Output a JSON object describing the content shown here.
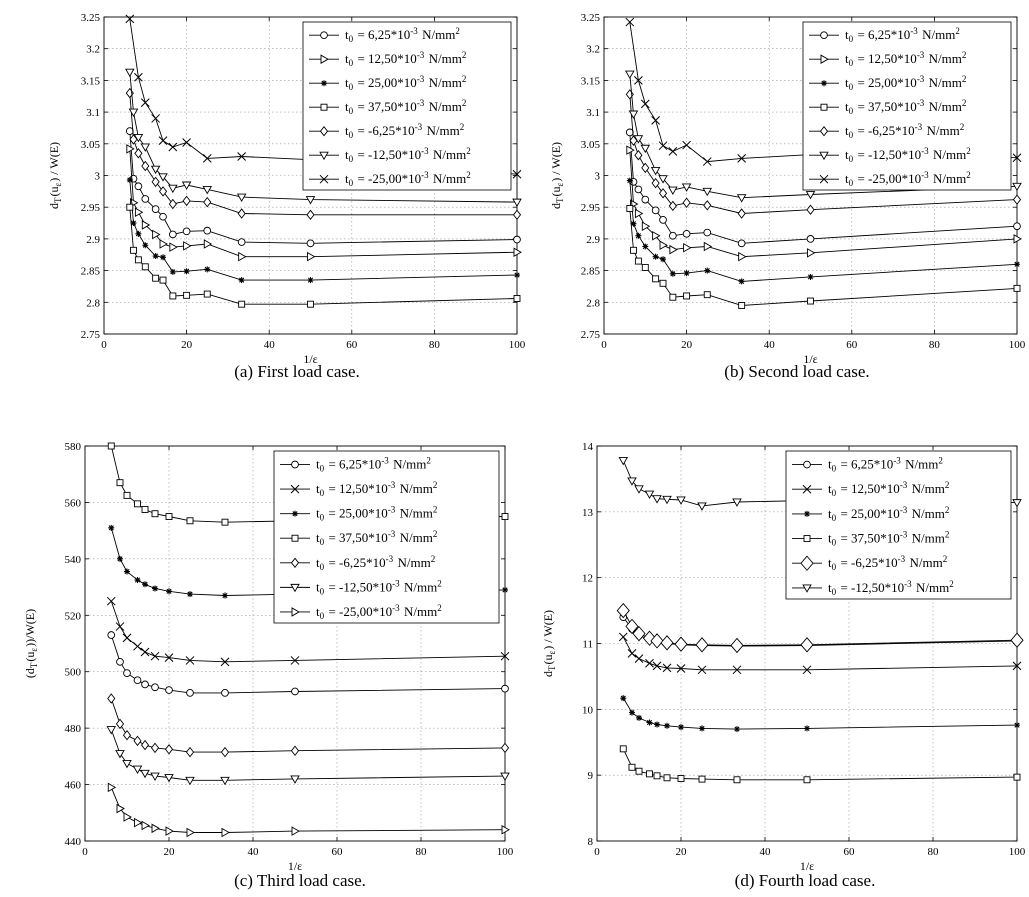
{
  "chart_data": [
    {
      "type": "line",
      "caption": "(a)  First load case.",
      "xlabel": "1/ε",
      "ylabel": "d_T(u_ε) / W(E)",
      "xlim": [
        0,
        100
      ],
      "ylim": [
        2.75,
        3.25
      ],
      "xticks": [
        0,
        20,
        40,
        60,
        80,
        100
      ],
      "yticks": [
        2.75,
        2.8,
        2.85,
        2.9,
        2.95,
        3,
        3.05,
        3.1,
        3.15,
        3.2,
        3.25
      ],
      "yticklabels": [
        "2.75",
        "2.8",
        "2.85",
        "2.9",
        "2.95",
        "3",
        "3.05",
        "3.1",
        "3.15",
        "3.2",
        "3.25"
      ],
      "grid": true,
      "legend_position": "top-right",
      "x": [
        6.25,
        7.14,
        8.33,
        10,
        12.5,
        14.29,
        16.67,
        20,
        25,
        33.33,
        50,
        100
      ],
      "series": [
        {
          "name": "t_0 = 6,25*10^-3 N/mm^2",
          "marker": "circle",
          "values": [
            3.07,
            2.995,
            2.983,
            2.963,
            2.947,
            2.935,
            2.907,
            2.912,
            2.913,
            2.895,
            2.893,
            2.899
          ]
        },
        {
          "name": "t_0 = 12,50*10^-3 N/mm^2",
          "marker": "triangle-right",
          "values": [
            3.042,
            2.957,
            2.942,
            2.922,
            2.907,
            2.892,
            2.887,
            2.889,
            2.892,
            2.872,
            2.872,
            2.879
          ]
        },
        {
          "name": "t_0 = 25,00*10^-3 N/mm^2",
          "marker": "star",
          "values": [
            2.993,
            2.925,
            2.908,
            2.89,
            2.873,
            2.871,
            2.848,
            2.849,
            2.852,
            2.835,
            2.835,
            2.843
          ]
        },
        {
          "name": "t_0 = 37,50*10^-3 N/mm^2",
          "marker": "square",
          "values": [
            2.95,
            2.882,
            2.867,
            2.856,
            2.838,
            2.835,
            2.81,
            2.811,
            2.813,
            2.797,
            2.797,
            2.806
          ]
        },
        {
          "name": "t_0 = -6,25*10^-3 N/mm^2",
          "marker": "diamond",
          "values": [
            3.13,
            3.057,
            3.035,
            3.015,
            2.99,
            2.975,
            2.955,
            2.96,
            2.958,
            2.94,
            2.938,
            2.938
          ]
        },
        {
          "name": "t_0 = -12,50*10^-3 N/mm^2",
          "marker": "triangle-down",
          "values": [
            3.163,
            3.1,
            3.06,
            3.045,
            3.01,
            2.998,
            2.98,
            2.985,
            2.978,
            2.966,
            2.962,
            2.958
          ]
        },
        {
          "name": "t_0 = -25,00*10^-3 N/mm^2",
          "marker": "x",
          "values": [
            3.247,
            null,
            3.155,
            3.115,
            3.09,
            3.055,
            3.045,
            3.052,
            3.027,
            3.03,
            3.025,
            3.002
          ]
        }
      ]
    },
    {
      "type": "line",
      "caption": "(b)  Second load case.",
      "xlabel": "1/ε",
      "ylabel": "d_T(u_ε) / W(E)",
      "xlim": [
        0,
        100
      ],
      "ylim": [
        2.75,
        3.25
      ],
      "xticks": [
        0,
        20,
        40,
        60,
        80,
        100
      ],
      "yticks": [
        2.75,
        2.8,
        2.85,
        2.9,
        2.95,
        3,
        3.05,
        3.1,
        3.15,
        3.2,
        3.25
      ],
      "yticklabels": [
        "2.75",
        "2.8",
        "2.85",
        "2.9",
        "2.95",
        "3",
        "3.05",
        "3.1",
        "3.15",
        "3.2",
        "3.25"
      ],
      "grid": true,
      "legend_position": "top-right",
      "x": [
        6.25,
        7.14,
        8.33,
        10,
        12.5,
        14.29,
        16.67,
        20,
        25,
        33.33,
        50,
        100
      ],
      "series": [
        {
          "name": "t_0 = 6,25*10^-3 N/mm^2",
          "marker": "circle",
          "values": [
            3.068,
            2.99,
            2.978,
            2.962,
            2.945,
            2.93,
            2.905,
            2.908,
            2.91,
            2.893,
            2.9,
            2.92
          ]
        },
        {
          "name": "t_0 = 12,50*10^-3 N/mm^2",
          "marker": "triangle-right",
          "values": [
            3.04,
            2.955,
            2.94,
            2.92,
            2.905,
            2.89,
            2.883,
            2.886,
            2.888,
            2.872,
            2.878,
            2.9
          ]
        },
        {
          "name": "t_0 = 25,00*10^-3 N/mm^2",
          "marker": "star",
          "values": [
            2.992,
            2.924,
            2.905,
            2.888,
            2.872,
            2.868,
            2.845,
            2.846,
            2.85,
            2.833,
            2.84,
            2.86
          ]
        },
        {
          "name": "t_0 = 37,50*10^-3 N/mm^2",
          "marker": "square",
          "values": [
            2.948,
            2.882,
            2.865,
            2.855,
            2.837,
            2.83,
            2.808,
            2.81,
            2.812,
            2.795,
            2.802,
            2.822
          ]
        },
        {
          "name": "t_0 = -6,25*10^-3 N/mm^2",
          "marker": "diamond",
          "values": [
            3.128,
            3.055,
            3.032,
            3.012,
            2.988,
            2.972,
            2.952,
            2.957,
            2.953,
            2.94,
            2.946,
            2.962
          ]
        },
        {
          "name": "t_0 = -12,50*10^-3 N/mm^2",
          "marker": "triangle-down",
          "values": [
            3.16,
            3.097,
            3.058,
            3.043,
            3.008,
            2.995,
            2.977,
            2.982,
            2.975,
            2.965,
            2.97,
            2.983
          ]
        },
        {
          "name": "t_0 = -25,00*10^-3 N/mm^2",
          "marker": "x",
          "values": [
            3.242,
            null,
            3.15,
            3.113,
            3.087,
            3.047,
            3.038,
            3.048,
            3.022,
            3.027,
            3.033,
            3.028
          ]
        }
      ]
    },
    {
      "type": "line",
      "caption": "(c)  Third load case.",
      "xlabel": "1/ε",
      "ylabel": "(d_T(u_ε))/W(E)",
      "xlim": [
        0,
        100
      ],
      "ylim": [
        440,
        580
      ],
      "xticks": [
        0,
        20,
        40,
        60,
        80,
        100
      ],
      "yticks": [
        440,
        460,
        480,
        500,
        520,
        540,
        560,
        580
      ],
      "yticklabels": [
        "440",
        "460",
        "480",
        "500",
        "520",
        "540",
        "560",
        "580"
      ],
      "grid": true,
      "legend_position": "top-right",
      "x": [
        6.25,
        8.33,
        10,
        12.5,
        14.29,
        16.67,
        20,
        25,
        33.33,
        50,
        100
      ],
      "series": [
        {
          "name": "t_0 = 6,25*10^-3 N/mm^2",
          "marker": "circle",
          "values": [
            513,
            503.5,
            499.5,
            497,
            495.5,
            494.5,
            493.5,
            492.5,
            492.5,
            493,
            494
          ]
        },
        {
          "name": "t_0 = 12,50*10^-3 N/mm^2",
          "marker": "x",
          "values": [
            525,
            516,
            512,
            509,
            507,
            505.5,
            505,
            504,
            503.5,
            504,
            505.5
          ]
        },
        {
          "name": "t_0 = 25,00*10^-3 N/mm^2",
          "marker": "star",
          "values": [
            551,
            540,
            535.5,
            532.5,
            531,
            529.5,
            528.5,
            527.5,
            527,
            527.5,
            529
          ]
        },
        {
          "name": "t_0 = 37,50*10^-3 N/mm^2",
          "marker": "square",
          "values": [
            580,
            567,
            562.5,
            559.5,
            557.5,
            556,
            555,
            553.5,
            553,
            553.5,
            555
          ]
        },
        {
          "name": "t_0 = -6,25*10^-3 N/mm^2",
          "marker": "diamond",
          "values": [
            490.5,
            481.5,
            477.5,
            475.5,
            474,
            473,
            472.5,
            471.5,
            471.5,
            472,
            473
          ]
        },
        {
          "name": "t_0 = -12,50*10^-3 N/mm^2",
          "marker": "triangle-down",
          "values": [
            479.5,
            471,
            467.5,
            465.5,
            464,
            463,
            462.5,
            461.5,
            461.5,
            462,
            463
          ]
        },
        {
          "name": "t_0 = -25,00*10^-3 N/mm^2",
          "marker": "triangle-right",
          "values": [
            459,
            451.5,
            448.5,
            446.5,
            445.5,
            444.5,
            443.5,
            443,
            443,
            443.5,
            444
          ]
        }
      ]
    },
    {
      "type": "line",
      "caption": "(d)  Fourth load case.",
      "xlabel": "1/ε",
      "ylabel": "d_T(u_ε) / W(E)",
      "xlim": [
        0,
        100
      ],
      "ylim": [
        8,
        14
      ],
      "xticks": [
        0,
        20,
        40,
        60,
        80,
        100
      ],
      "yticks": [
        8,
        9,
        10,
        11,
        12,
        13,
        14
      ],
      "yticklabels": [
        "8",
        "9",
        "10",
        "11",
        "12",
        "13",
        "14"
      ],
      "grid": true,
      "legend_position": "top-right",
      "x": [
        6.25,
        8.33,
        10,
        12.5,
        14.29,
        16.67,
        20,
        25,
        33.33,
        50,
        100
      ],
      "series": [
        {
          "name": "t_0 = 6,25*10^-3 N/mm^2",
          "marker": "circle",
          "values": [
            11.4,
            11.22,
            11.12,
            11.06,
            11.02,
            11.0,
            10.98,
            10.97,
            10.96,
            10.97,
            11.04
          ]
        },
        {
          "name": "t_0 = 12,50*10^-3 N/mm^2",
          "marker": "x",
          "values": [
            11.1,
            10.85,
            10.77,
            10.7,
            10.66,
            10.63,
            10.62,
            10.6,
            10.6,
            10.6,
            10.66
          ]
        },
        {
          "name": "t_0 = 25,00*10^-3 N/mm^2",
          "marker": "star",
          "values": [
            10.17,
            9.95,
            9.87,
            9.8,
            9.77,
            9.75,
            9.73,
            9.71,
            9.7,
            9.71,
            9.76
          ]
        },
        {
          "name": "t_0 = 37,50*10^-3 N/mm^2",
          "marker": "square",
          "values": [
            9.4,
            9.12,
            9.06,
            9.02,
            8.99,
            8.96,
            8.95,
            8.94,
            8.93,
            8.93,
            8.97
          ]
        },
        {
          "name": "t_0 = -6,25*10^-3 N/mm^2",
          "marker": "diamond-large",
          "values": [
            11.5,
            11.26,
            11.15,
            11.08,
            11.04,
            11.01,
            10.99,
            10.98,
            10.97,
            10.98,
            11.05
          ]
        },
        {
          "name": "t_0 = -12,50*10^-3 N/mm^2",
          "marker": "triangle-down",
          "values": [
            13.78,
            13.47,
            13.35,
            13.27,
            13.2,
            13.19,
            13.18,
            13.09,
            13.15,
            13.17,
            13.14
          ]
        }
      ]
    }
  ]
}
